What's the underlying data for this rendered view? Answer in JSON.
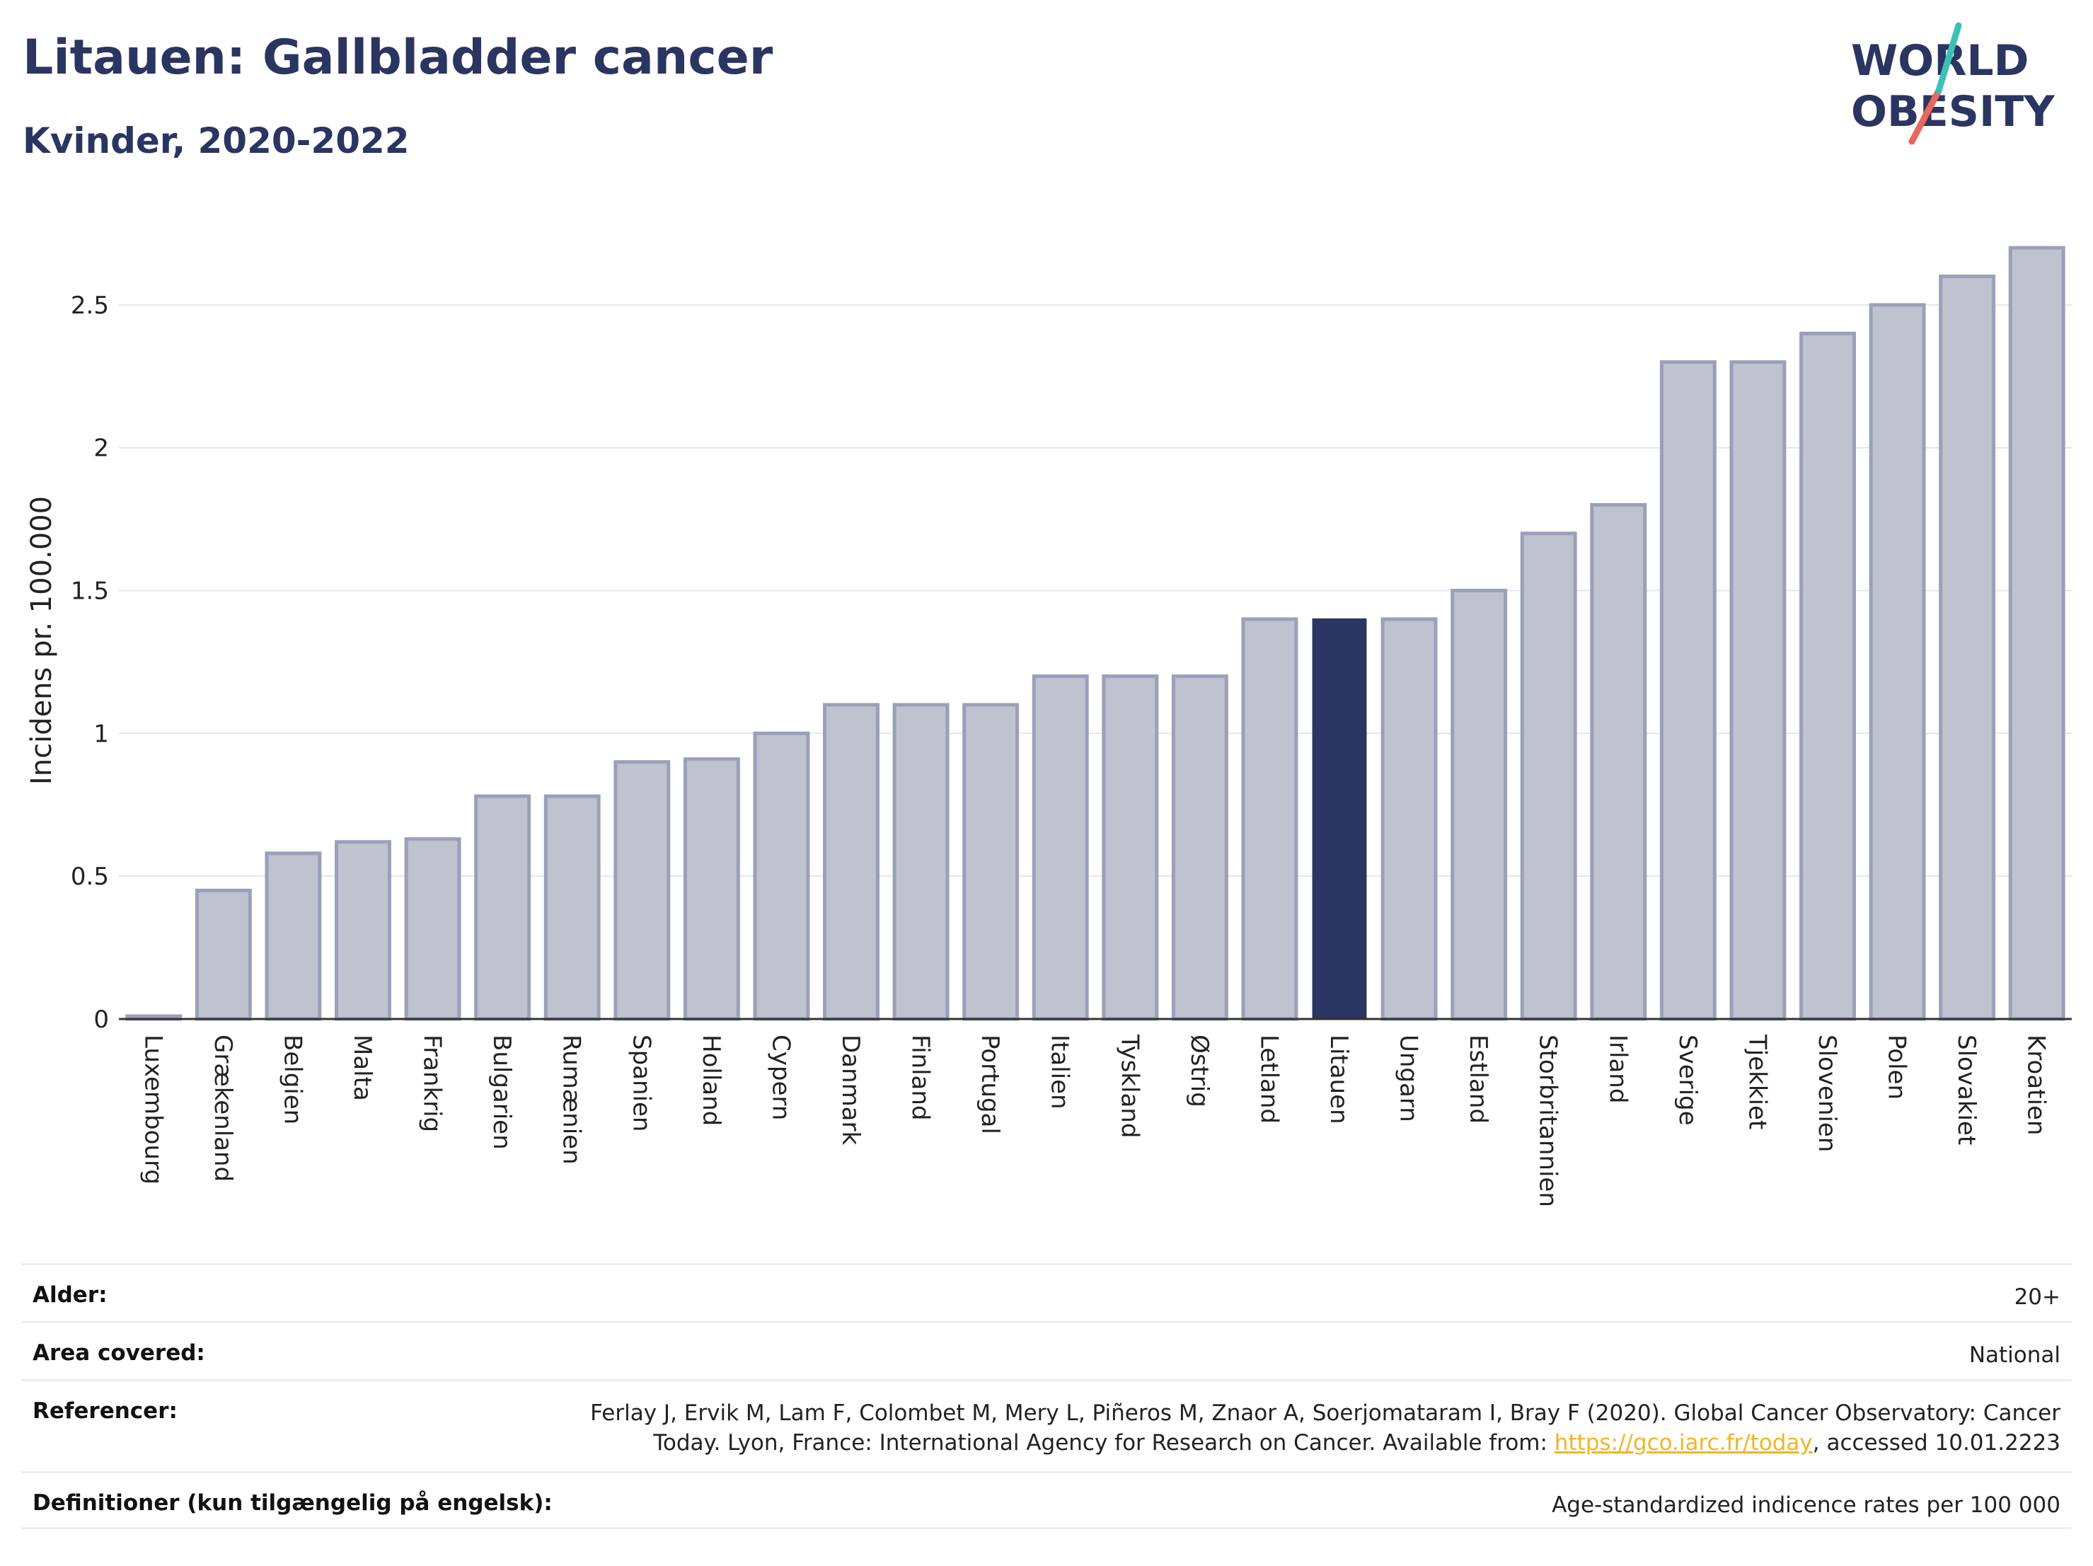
{
  "header": {
    "title": "Litauen: Gallbladder cancer",
    "subtitle": "Kvinder, 2020-2022"
  },
  "logo": {
    "line1": "WORLD",
    "line2": "OBESITY"
  },
  "colors": {
    "highlight": "#2b3561",
    "bar_fill": "#bfc2cf",
    "bar_stroke": "#9ba0b8",
    "link": "#f2b524"
  },
  "chart_data": {
    "type": "bar",
    "ylabel": "Incidens pr. 100.000",
    "xlabel": "",
    "ylim": [
      0,
      2.75
    ],
    "yticks": [
      0,
      0.5,
      1,
      1.5,
      2,
      2.5
    ],
    "ytick_labels": [
      "0",
      "0.5",
      "1",
      "1.5",
      "2",
      "2.5"
    ],
    "grid": true,
    "highlight_category": "Litauen",
    "categories": [
      "Luxembourg",
      "Grækenland",
      "Belgien",
      "Malta",
      "Frankrig",
      "Bulgarien",
      "Rumænien",
      "Spanien",
      "Holland",
      "Cypern",
      "Danmark",
      "Finland",
      "Portugal",
      "Italien",
      "Tyskland",
      "Østrig",
      "Letland",
      "Litauen",
      "Ungarn",
      "Estland",
      "Storbritannien",
      "Irland",
      "Sverige",
      "Tjekkiet",
      "Slovenien",
      "Polen",
      "Slovakiet",
      "Kroatien"
    ],
    "values": [
      0.01,
      0.45,
      0.58,
      0.62,
      0.63,
      0.78,
      0.78,
      0.9,
      0.91,
      1.0,
      1.1,
      1.1,
      1.1,
      1.2,
      1.2,
      1.2,
      1.4,
      1.4,
      1.4,
      1.5,
      1.7,
      1.8,
      2.3,
      2.3,
      2.4,
      2.5,
      2.6,
      2.7
    ]
  },
  "footer": {
    "rows": [
      {
        "label": "Alder:",
        "value": "20+"
      },
      {
        "label": "Area covered:",
        "value": "National"
      },
      {
        "label": "Referencer:",
        "value_before": "Ferlay J, Ervik M, Lam F, Colombet M, Mery L, Piñeros M, Znaor A, Soerjomataram I, Bray F (2020). Global Cancer Observatory: Cancer Today. Lyon, France: International Agency for Research on Cancer. Available from: ",
        "link": "https://gco.iarc.fr/today",
        "value_after": ", accessed 10.01.2223"
      },
      {
        "label": "Definitioner (kun tilgængelig på engelsk):",
        "value": "Age-standardized indicence rates per 100 000"
      }
    ]
  }
}
